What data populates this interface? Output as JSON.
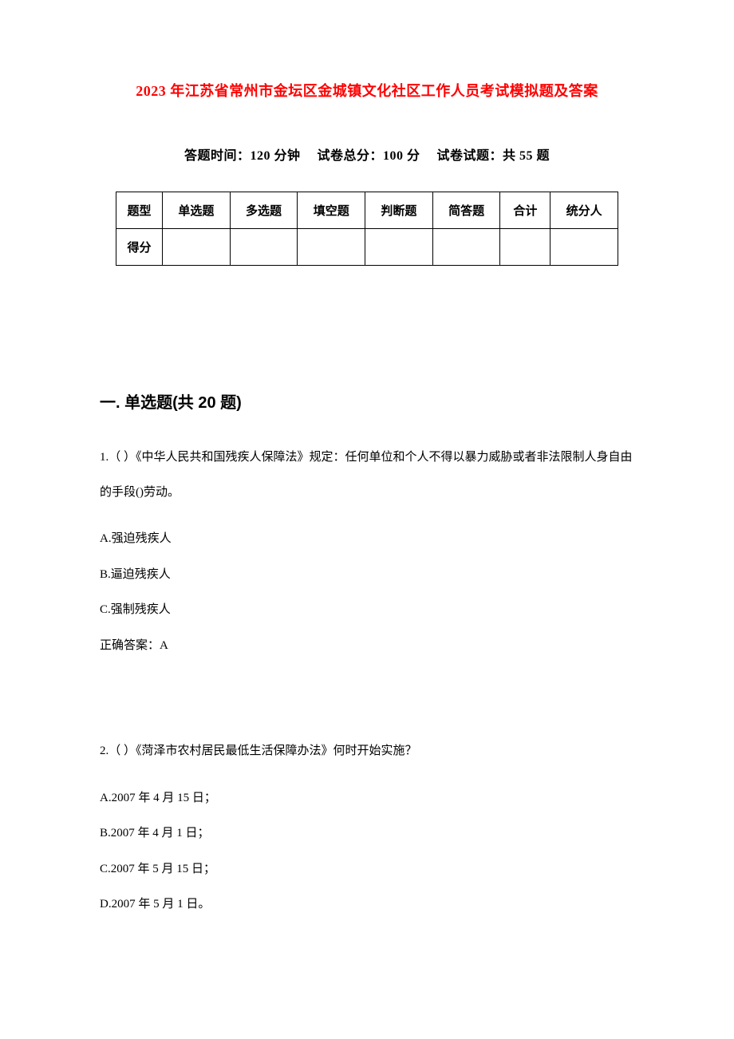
{
  "title": "2023 年江苏省常州市金坛区金城镇文化社区工作人员考试模拟题及答案",
  "subtitle": "答题时间：120 分钟　 试卷总分：100 分　 试卷试题：共 55 题",
  "score_table": {
    "headers": [
      "题型",
      "单选题",
      "多选题",
      "填空题",
      "判断题",
      "简答题",
      "合计",
      "统分人"
    ],
    "row_label": "得分",
    "header_bg": "#ffffff",
    "border_color": "#000000"
  },
  "section1": {
    "heading": "一. 单选题(共 20 题)",
    "questions": [
      {
        "stem": "1.（ ）《中华人民共和国残疾人保障法》规定：任何单位和个人不得以暴力威胁或者非法限制人身自由的手段()劳动。",
        "options": [
          "A.强迫残疾人",
          "B.逼迫残疾人",
          "C.强制残疾人"
        ],
        "answer": "正确答案：A"
      },
      {
        "stem": "2.（ ）《菏泽市农村居民最低生活保障办法》何时开始实施？",
        "options": [
          "A.2007 年  4  月  15  日；",
          "B.2007 年  4 月  1 日；",
          "C.2007 年  5  月  15  日；",
          "D.2007 年  5 月  1 日。"
        ],
        "answer": ""
      }
    ]
  },
  "colors": {
    "title_color": "#ff0000",
    "text_color": "#000000",
    "background": "#ffffff"
  },
  "typography": {
    "title_fontsize": 18,
    "subtitle_fontsize": 16,
    "heading_fontsize": 20,
    "body_fontsize": 15,
    "font_family_body": "SimSun",
    "font_family_heading": "SimHei"
  }
}
